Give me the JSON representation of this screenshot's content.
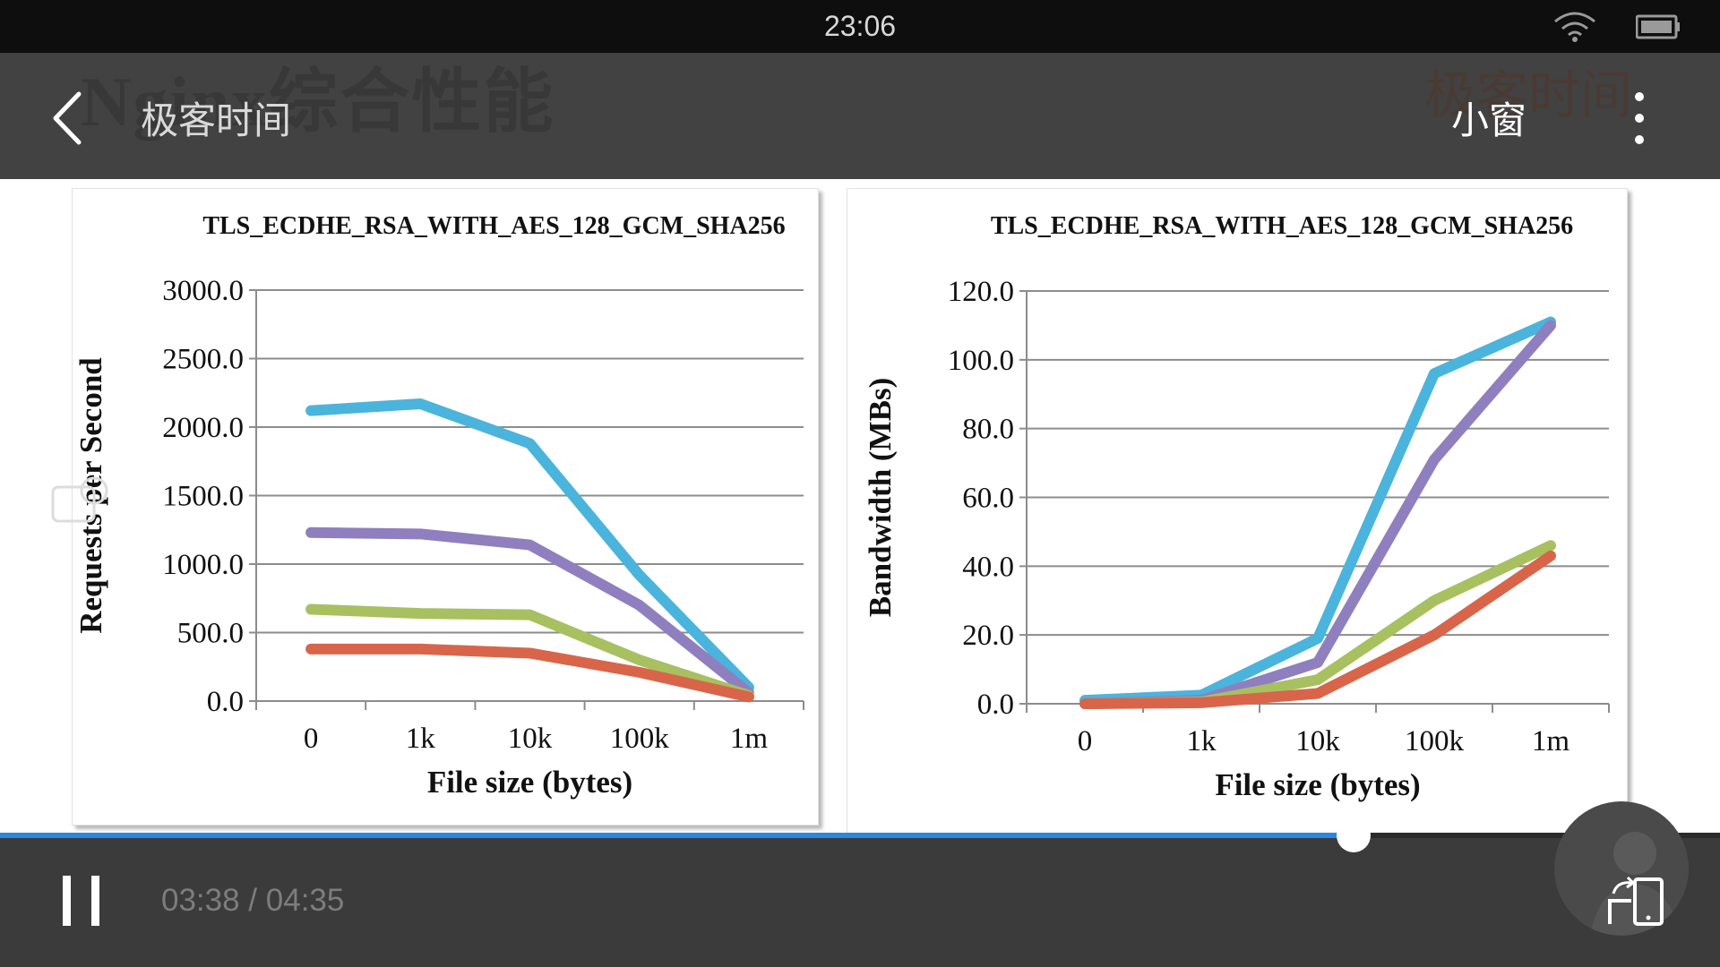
{
  "status_bar": {
    "time": "23:06"
  },
  "top_bar": {
    "back_icon": "chevron-left-icon",
    "title": "极客时间",
    "mini_window_label": "小窗",
    "more_icon": "vertical-dots-icon",
    "watermark_title": "Nginx综合性能",
    "watermark_logo": "极客时间"
  },
  "player": {
    "time_display": "03:38 / 04:35",
    "progress": 0.787,
    "pause_icon": "pause-icon",
    "rotate_icon": "screen-rotate-icon"
  },
  "colors": {
    "blue": "#4ab4dc",
    "purple": "#8f7fbf",
    "green": "#a8c060",
    "red": "#d8654a",
    "progress": "#2a88e0"
  },
  "chart_data": [
    {
      "type": "line",
      "title": "TLS_ECDHE_RSA_WITH_AES_128_GCM_SHA256",
      "xlabel": "File size (bytes)",
      "ylabel": "Requests per Second",
      "categories": [
        "0",
        "1k",
        "10k",
        "100k",
        "1m"
      ],
      "ylim": [
        0,
        3000
      ],
      "yticks": [
        "0.0",
        "500.0",
        "1000.0",
        "1500.0",
        "2000.0",
        "2500.0",
        "3000.0"
      ],
      "grid": true,
      "series": [
        {
          "color": "#4ab4dc",
          "values": [
            2120,
            2170,
            1880,
            920,
            100
          ]
        },
        {
          "color": "#8f7fbf",
          "values": [
            1230,
            1220,
            1140,
            700,
            60
          ]
        },
        {
          "color": "#a8c060",
          "values": [
            670,
            640,
            630,
            300,
            40
          ]
        },
        {
          "color": "#d8654a",
          "values": [
            380,
            380,
            350,
            210,
            30
          ]
        }
      ]
    },
    {
      "type": "line",
      "title": "TLS_ECDHE_RSA_WITH_AES_128_GCM_SHA256",
      "xlabel": "File size (bytes)",
      "ylabel": "Bandwidth (MBs)",
      "categories": [
        "0",
        "1k",
        "10k",
        "100k",
        "1m"
      ],
      "ylim": [
        0,
        120
      ],
      "yticks": [
        "0.0",
        "20.0",
        "40.0",
        "60.0",
        "80.0",
        "100.0",
        "120.0"
      ],
      "grid": true,
      "series": [
        {
          "color": "#4ab4dc",
          "values": [
            1,
            2.5,
            19,
            96,
            111
          ]
        },
        {
          "color": "#8f7fbf",
          "values": [
            0,
            1,
            12,
            71,
            110
          ]
        },
        {
          "color": "#a8c060",
          "values": [
            0,
            0.5,
            7,
            30,
            46
          ]
        },
        {
          "color": "#d8654a",
          "values": [
            0,
            0.3,
            3,
            20,
            43
          ]
        }
      ]
    }
  ]
}
